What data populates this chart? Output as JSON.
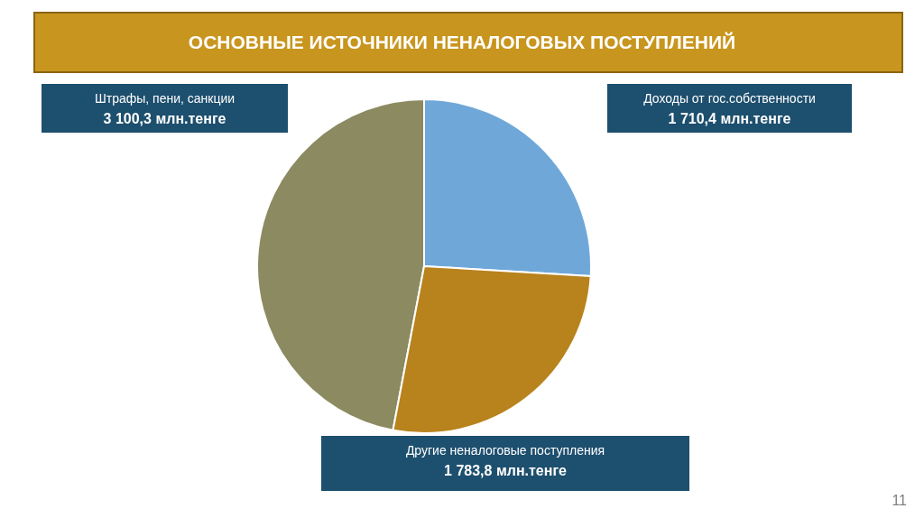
{
  "chart_data": {
    "type": "pie",
    "title": "ОСНОВНЫЕ ИСТОЧНИКИ НЕНАЛОГОВЫХ ПОСТУПЛЕНИЙ",
    "categories": [
      "Штрафы, пени, санкции",
      "Доходы от гос.собственности",
      "Другие неналоговые поступления"
    ],
    "values": [
      3100.3,
      1710.4,
      1783.8
    ],
    "value_labels": [
      "3 100,3 млн.тенге",
      "1 710,4 млн.тенге",
      "1 783,8 млн.тенге"
    ],
    "colors": [
      "#8c8a60",
      "#6fa8d8",
      "#b8821c"
    ],
    "annotations": [
      "11"
    ]
  }
}
